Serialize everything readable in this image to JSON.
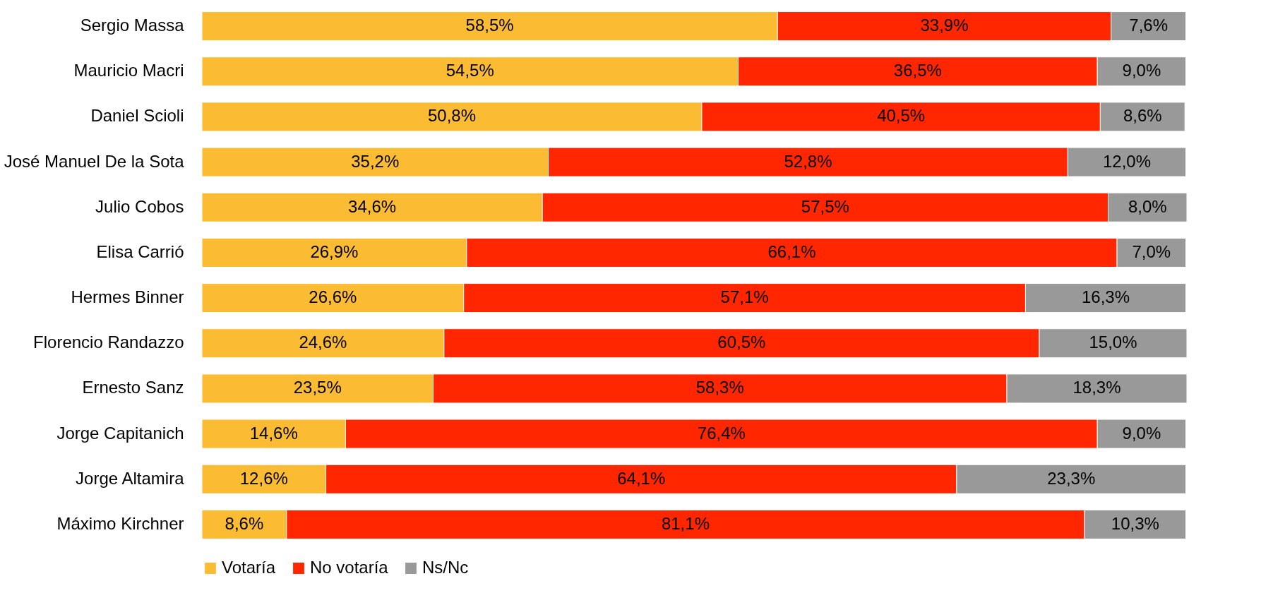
{
  "chart_data": {
    "type": "bar",
    "orientation": "horizontal",
    "stacked": true,
    "categories": [
      "Sergio Massa",
      "Mauricio Macri",
      "Daniel Scioli",
      "José Manuel De la Sota",
      "Julio Cobos",
      "Elisa Carrió",
      "Hermes Binner",
      "Florencio Randazzo",
      "Ernesto Sanz",
      "Jorge Capitanich",
      "Jorge Altamira",
      "Máximo Kirchner"
    ],
    "series": [
      {
        "name": "Votaría",
        "color": "#fbbc33",
        "values": [
          58.5,
          54.5,
          50.8,
          35.2,
          34.6,
          26.9,
          26.6,
          24.6,
          23.5,
          14.6,
          12.6,
          8.6
        ],
        "value_labels": [
          "58,5%",
          "54,5%",
          "50,8%",
          "35,2%",
          "34,6%",
          "26,9%",
          "26,6%",
          "24,6%",
          "23,5%",
          "14,6%",
          "12,6%",
          "8,6%"
        ]
      },
      {
        "name": "No votaría",
        "color": "#ff2600",
        "values": [
          33.9,
          36.5,
          40.5,
          52.8,
          57.5,
          66.1,
          57.1,
          60.5,
          58.3,
          76.4,
          64.1,
          81.1
        ],
        "value_labels": [
          "33,9%",
          "36,5%",
          "40,5%",
          "52,8%",
          "57,5%",
          "66,1%",
          "57,1%",
          "60,5%",
          "58,3%",
          "76,4%",
          "64,1%",
          "81,1%"
        ]
      },
      {
        "name": "Ns/Nc",
        "color": "#999999",
        "values": [
          7.6,
          9.0,
          8.6,
          12.0,
          8.0,
          7.0,
          16.3,
          15.0,
          18.3,
          9.0,
          23.3,
          10.3
        ],
        "value_labels": [
          "7,6%",
          "9,0%",
          "8,6%",
          "12,0%",
          "8,0%",
          "7,0%",
          "16,3%",
          "15,0%",
          "18,3%",
          "9,0%",
          "23,3%",
          "10,3%"
        ]
      }
    ],
    "legend": "bottom",
    "tick_labels": "y",
    "grid": false
  }
}
